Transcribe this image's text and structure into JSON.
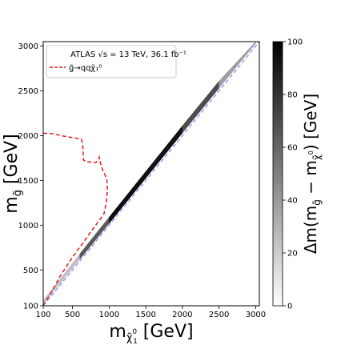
{
  "chart_data": {
    "type": "line",
    "xlabel": "m_χ̃₁⁰ [GeV]",
    "xlabel_main": "m",
    "xlabel_sub": "χ̃",
    "xlabel_sup": "0",
    "xlabel_subsub": "1",
    "xlabel_unit": " [GeV]",
    "ylabel": "m_g̃ [GeV]",
    "ylabel_main": "m",
    "ylabel_sub": "g̃",
    "ylabel_unit": " [GeV]",
    "xlim": [
      100,
      3050
    ],
    "ylim": [
      100,
      3050
    ],
    "xticks": [
      100,
      500,
      1000,
      1500,
      2000,
      2500,
      3000
    ],
    "yticks": [
      100,
      500,
      1000,
      1500,
      2000,
      2500,
      3000
    ],
    "grid": false,
    "legend_position": "top-left",
    "legend": [
      {
        "label": "ATLAS  √s = 13 TeV, 36.1 fb⁻¹",
        "style": "none"
      },
      {
        "label": "g̃→qqχ̃₁⁰",
        "style": "dashed",
        "color": "#e41a1c"
      }
    ],
    "series": [
      {
        "name": "g̃→qqχ̃₁⁰",
        "style": "dashed",
        "color": "#e41a1c",
        "x": [
          100,
          160,
          250,
          340,
          450,
          560,
          620,
          640,
          645,
          650,
          680,
          750,
          820,
          855,
          865,
          880,
          910,
          945,
          970,
          975,
          960,
          930,
          880,
          780,
          640,
          480,
          330,
          210,
          100
        ],
        "y": [
          2025,
          2028,
          2018,
          2000,
          1985,
          1970,
          1960,
          1900,
          1800,
          1730,
          1710,
          1705,
          1700,
          1735,
          1760,
          1700,
          1620,
          1560,
          1500,
          1380,
          1250,
          1130,
          1070,
          960,
          800,
          620,
          430,
          250,
          100
        ]
      },
      {
        "name": "diagonal",
        "style": "dashed",
        "color": "#6b6bf0",
        "x": [
          100,
          3050
        ],
        "y": [
          100,
          3050
        ]
      }
    ],
    "band": {
      "x": [
        100,
        600,
        1000,
        1500,
        2000,
        2500,
        3000
      ],
      "upper": [
        160,
        680,
        1090,
        1600,
        2110,
        2610,
        3050
      ],
      "lower": [
        120,
        620,
        1020,
        1525,
        2030,
        2530,
        3030
      ],
      "dm": [
        10,
        40,
        90,
        100,
        85,
        55,
        20
      ]
    },
    "colorbar": {
      "label": "Δm(m_g̃ − m_χ̃₁⁰) [GeV]",
      "label_parts": [
        "Δm(m",
        "g̃",
        " − m",
        "χ̃",
        "0",
        "1",
        ") [GeV]"
      ],
      "range": [
        0,
        100
      ],
      "ticks": [
        0,
        20,
        40,
        60,
        80,
        100
      ],
      "colors": [
        "#ffffff",
        "#000000"
      ]
    }
  }
}
